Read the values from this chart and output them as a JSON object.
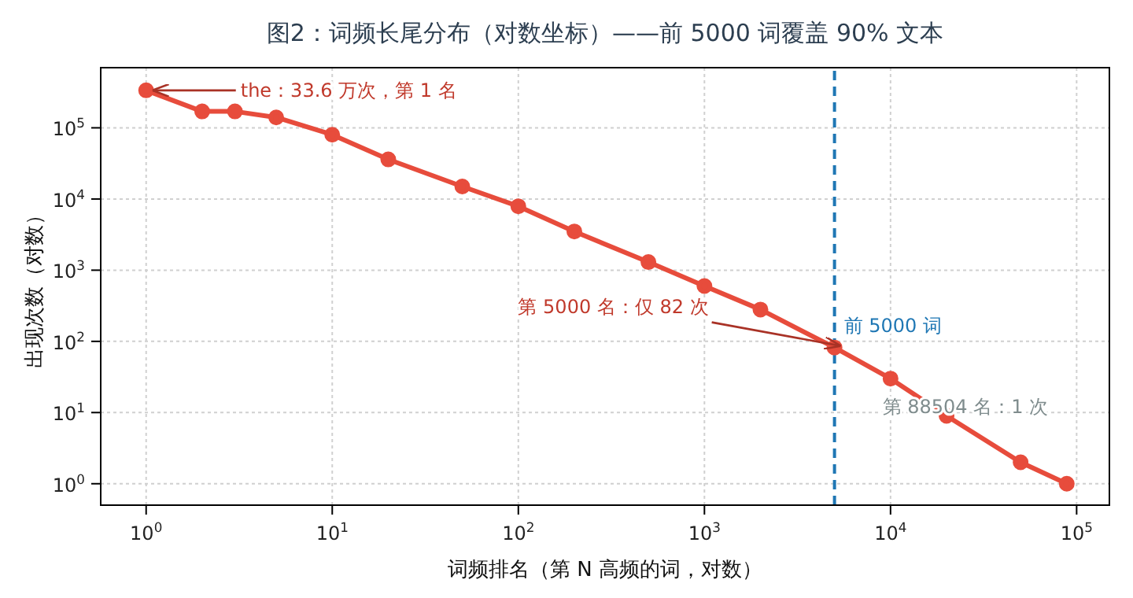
{
  "chart_data": {
    "type": "line",
    "title": "图2：词频长尾分布（对数坐标）——前 5000 词覆盖 90% 文本",
    "xlabel": "词频排名（第 N 高频的词，对数）",
    "ylabel": "出现次数（对数）",
    "x": [
      1,
      2,
      3,
      5,
      10,
      20,
      50,
      100,
      200,
      500,
      1000,
      2000,
      5000,
      10000,
      20000,
      50000,
      88504
    ],
    "series": [
      {
        "color": "#e74c3c",
        "values": [
          336000,
          170000,
          170000,
          140000,
          80000,
          36000,
          15000,
          7900,
          3500,
          1300,
          600,
          280,
          82,
          30,
          9,
          2,
          1
        ]
      }
    ],
    "log": "xy",
    "xlim": [
      0.57,
      150000
    ],
    "ylim": [
      0.5,
      700000
    ],
    "xticks": [
      {
        "value": 1,
        "label": "10$^{0}$"
      },
      {
        "value": 10,
        "label": "10$^{1}$"
      },
      {
        "value": 100,
        "label": "10$^{2}$"
      },
      {
        "value": 1000,
        "label": "10$^{3}$"
      },
      {
        "value": 10000,
        "label": "10$^{4}$"
      },
      {
        "value": 100000,
        "label": "10$^{5}$"
      }
    ],
    "yticks": [
      {
        "value": 1,
        "label": "10$^{0}$"
      },
      {
        "value": 10,
        "label": "10$^{1}$"
      },
      {
        "value": 100,
        "label": "10$^{2}$"
      },
      {
        "value": 1000,
        "label": "10$^{3}$"
      },
      {
        "value": 10000,
        "label": "10$^{4}$"
      },
      {
        "value": 100000,
        "label": "10$^{5}$"
      }
    ],
    "grid": true,
    "marker": "circle",
    "line_style": "solid",
    "ref_lines": [
      {
        "axis": "x",
        "value": 5000,
        "label": "前 5000 词",
        "color": "#1f77b4",
        "line_style": "dashed"
      }
    ],
    "annotations": [
      {
        "text": "the：33.6 万次，第 1 名",
        "x": 1,
        "y": 336000
      },
      {
        "text": "第 5000 名：仅 82 次",
        "x": 5000,
        "y": 82
      },
      "第 88504 名：1 次"
    ]
  }
}
